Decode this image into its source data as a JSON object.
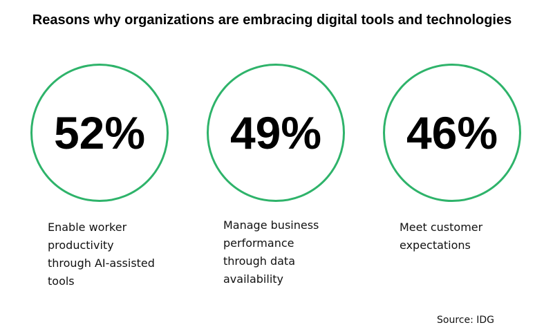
{
  "chart_data": {
    "type": "stat",
    "title": "Reasons why organizations are embracing digital tools and technologies",
    "unit": "%",
    "ring_color": "#2eb36a",
    "items": [
      {
        "value": 52,
        "display": "52%",
        "label_lines": [
          "Enable worker",
          "productivity",
          "through AI-assisted",
          "tools"
        ]
      },
      {
        "value": 49,
        "display": "49%",
        "label_lines": [
          "Manage business",
          "performance",
          "through data",
          "availability"
        ]
      },
      {
        "value": 46,
        "display": "46%",
        "label_lines": [
          "Meet customer",
          "expectations"
        ]
      }
    ],
    "source": "Source: IDG"
  }
}
